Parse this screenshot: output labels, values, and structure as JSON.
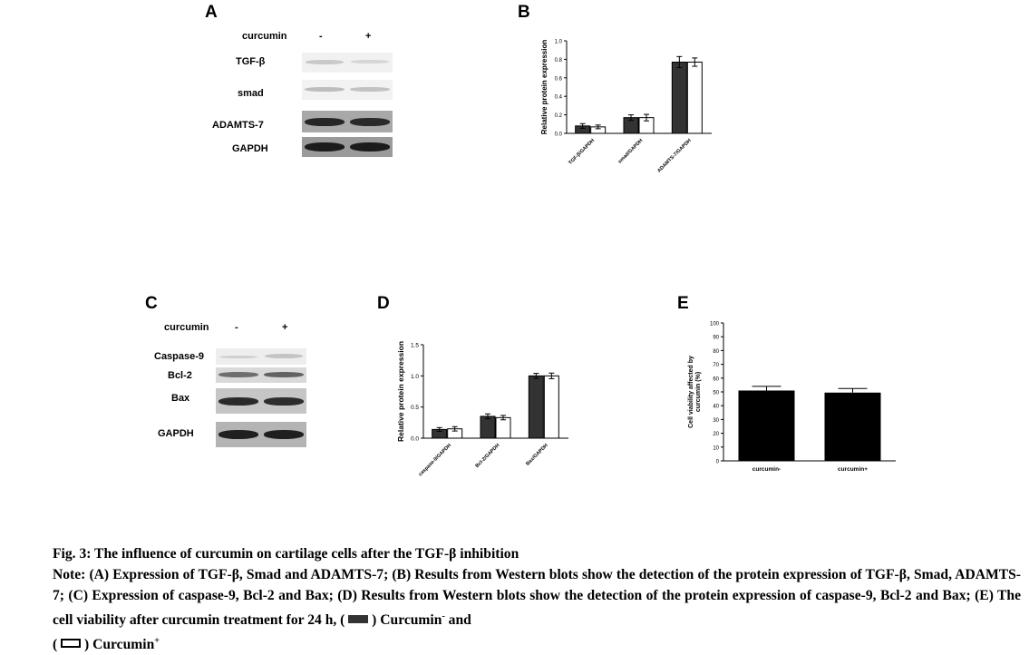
{
  "panels": {
    "A": {
      "letter": "A",
      "header": "curcumin",
      "lanes": [
        "-",
        "+"
      ],
      "rows": [
        "TGF-β",
        "smad",
        "ADAMTS-7",
        "GAPDH"
      ]
    },
    "B": {
      "letter": "B",
      "chart_data": {
        "type": "bar",
        "categories": [
          "TGF-β/GAPDH",
          "smad/GAPDH",
          "ADAMTS-7/GAPDH"
        ],
        "series": [
          {
            "name": "Curcumin-",
            "values": [
              0.08,
              0.17,
              0.77
            ],
            "errors": [
              0.025,
              0.03,
              0.06
            ]
          },
          {
            "name": "Curcumin+",
            "values": [
              0.07,
              0.17,
              0.77
            ],
            "errors": [
              0.02,
              0.035,
              0.045
            ]
          }
        ],
        "ylabel": "Relative protein expression",
        "ylim": [
          0,
          1.0
        ],
        "yticks": [
          "0.0",
          "0.2",
          "0.4",
          "0.6",
          "0.8",
          "1.0"
        ],
        "colors": [
          "#333333",
          "#ffffff"
        ]
      }
    },
    "C": {
      "letter": "C",
      "header": "curcumin",
      "lanes": [
        "-",
        "+"
      ],
      "rows": [
        "Caspase-9",
        "Bcl-2",
        "Bax",
        "GAPDH"
      ]
    },
    "D": {
      "letter": "D",
      "chart_data": {
        "type": "bar",
        "categories": [
          "caspase-9/GAPDH",
          "Bcl-2/GAPDH",
          "Bax/GAPDH"
        ],
        "series": [
          {
            "name": "Curcumin-",
            "values": [
              0.14,
              0.35,
              1.0
            ],
            "errors": [
              0.03,
              0.04,
              0.04
            ]
          },
          {
            "name": "Curcumin+",
            "values": [
              0.15,
              0.33,
              1.0
            ],
            "errors": [
              0.035,
              0.035,
              0.045
            ]
          }
        ],
        "ylabel": "Relative protein expression",
        "ylim": [
          0,
          1.5
        ],
        "yticks": [
          "0.0",
          "0.5",
          "1.0",
          "1.5"
        ],
        "colors": [
          "#333333",
          "#ffffff"
        ]
      }
    },
    "E": {
      "letter": "E",
      "chart_data": {
        "type": "bar",
        "categories": [
          "curcumin-",
          "curcumin+"
        ],
        "values": [
          51,
          49.5
        ],
        "errors": [
          3,
          3
        ],
        "ylabel": "Cell viability affected by curcumin (%)",
        "ylim": [
          0,
          100
        ],
        "yticks": [
          "0",
          "10",
          "20",
          "30",
          "40",
          "50",
          "60",
          "70",
          "80",
          "90",
          "100"
        ],
        "color": "#000000"
      }
    }
  },
  "caption": {
    "title": "Fig. 3: The influence of curcumin on cartilage cells after the TGF-β inhibition",
    "note_start": "Note: (A) Expression of TGF-β, Smad and ADAMTS-7; (B) Results from Western blots show the detection of the protein expression of TGF-β, Smad, ADAMTS-7; (C) Expression of caspase-9, Bcl-2 and Bax; (D) Results from Western blots show the detection of the protein expression of caspase-9, Bcl-2 and Bax; (E) The cell viability after curcumin treatment for 24 h, (",
    "legend_dark_label": ") Curcumin",
    "legend_dark_sup": "-",
    "and_text": " and",
    "paren_open": "(",
    "legend_light_label": ") Curcumin",
    "legend_light_sup": "+"
  }
}
